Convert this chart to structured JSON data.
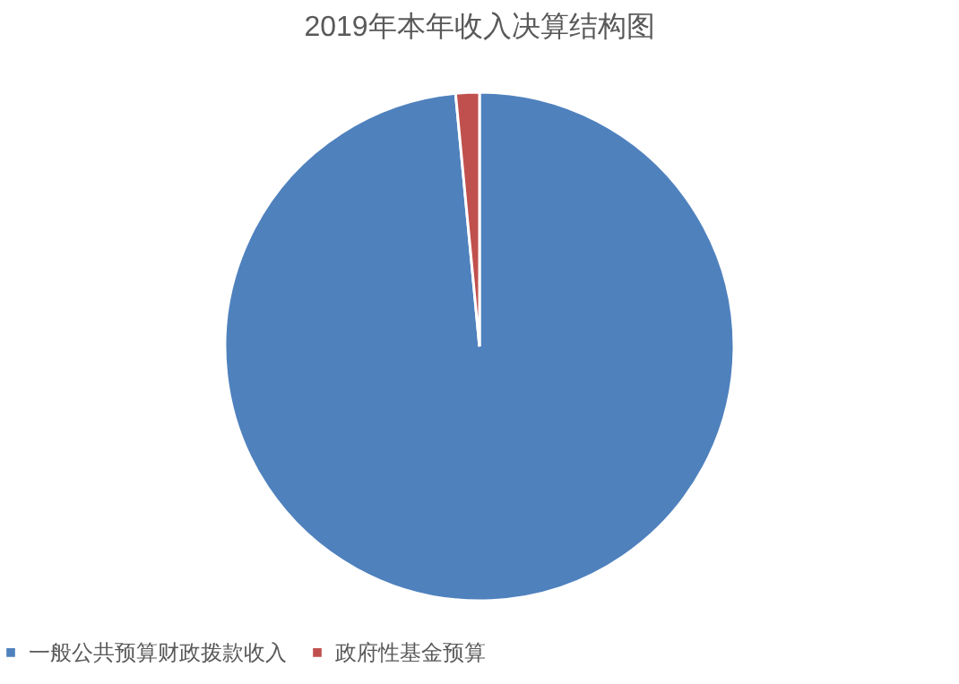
{
  "chart_data": {
    "type": "pie",
    "title": "2019年本年收入决算结构图",
    "categories": [
      "一般公共预算财政拨款收入",
      "政府性基金预算"
    ],
    "values": [
      98.5,
      1.5
    ],
    "colors": [
      "#4f81bd",
      "#c0504d"
    ],
    "legend": "bottom"
  }
}
